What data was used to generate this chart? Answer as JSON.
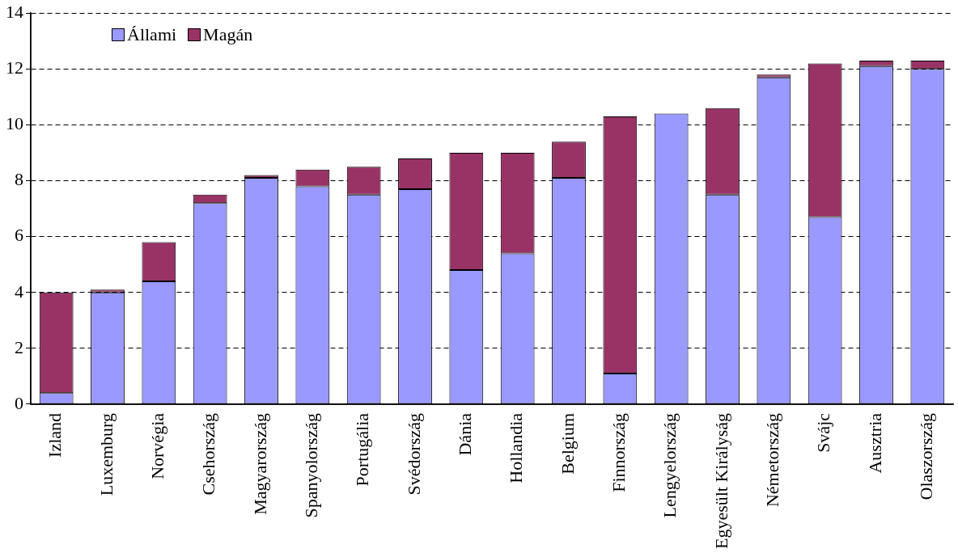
{
  "chart_data": {
    "type": "bar",
    "stacked": true,
    "categories": [
      "Izland",
      "Luxemburg",
      "Norvégia",
      "Csehország",
      "Magyarország",
      "Spanyolország",
      "Portugália",
      "Svédország",
      "Dánia",
      "Hollandia",
      "Belgium",
      "Finnország",
      "Lengyelország",
      "Egyesült Királyság",
      "Németország",
      "Svájc",
      "Ausztria",
      "Olaszország"
    ],
    "series": [
      {
        "name": "Állami",
        "color": "#9999ff",
        "values": [
          0.4,
          4.0,
          4.4,
          7.2,
          8.1,
          7.8,
          7.5,
          7.7,
          4.8,
          5.4,
          8.1,
          1.1,
          10.4,
          7.5,
          11.7,
          6.7,
          12.1,
          12.0
        ]
      },
      {
        "name": "Magán",
        "color": "#993366",
        "values": [
          3.6,
          0.1,
          1.4,
          0.3,
          0.1,
          0.6,
          1.0,
          1.1,
          4.2,
          3.6,
          1.3,
          9.2,
          0,
          3.1,
          0.1,
          5.5,
          0.2,
          0.3
        ]
      }
    ],
    "ylim": [
      0,
      14
    ],
    "yticks": [
      0,
      2,
      4,
      6,
      8,
      10,
      12,
      14
    ],
    "grid": "y",
    "legend": "top left"
  }
}
